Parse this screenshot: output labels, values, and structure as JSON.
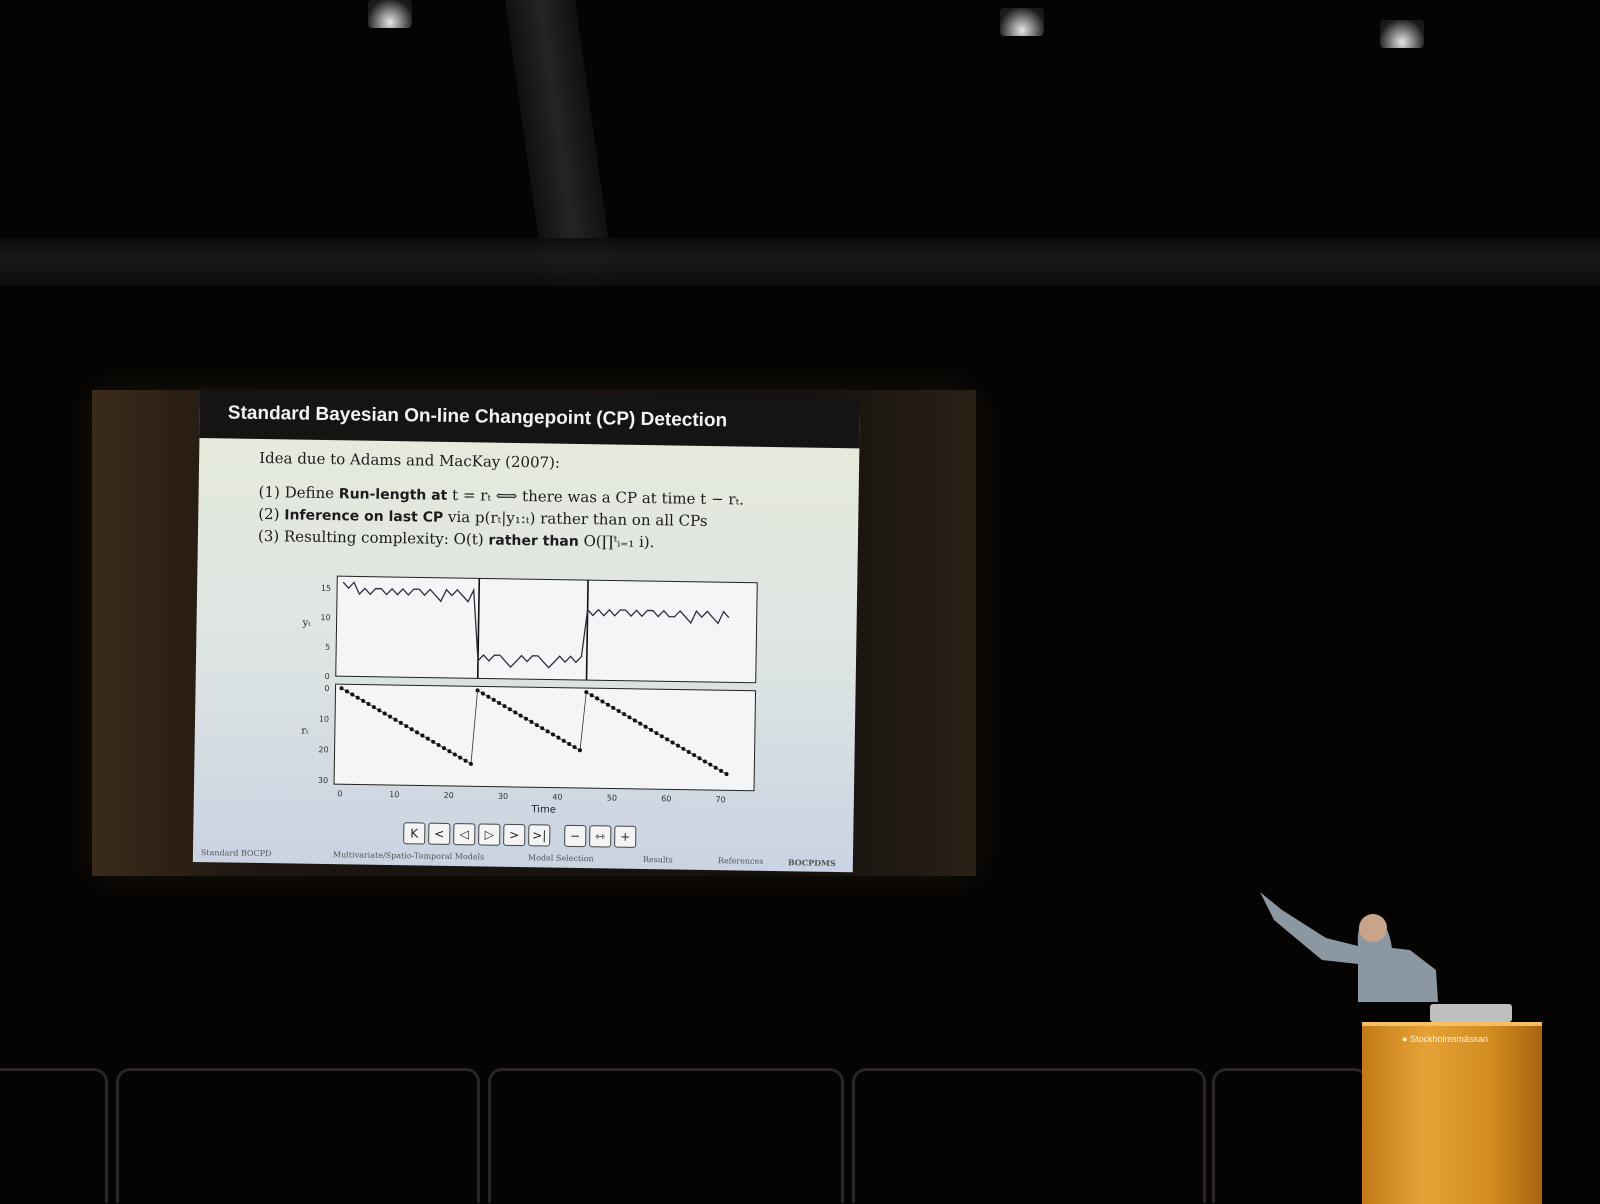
{
  "slide": {
    "title": "Standard Bayesian On-line Changepoint (CP) Detection",
    "intro": "Idea due to Adams and MacKay (2007):",
    "items": [
      {
        "num": "(1)",
        "pre": "Define ",
        "bold": "Run-length at",
        "post": " t = rₜ ⟺ there was a CP at time t − rₜ."
      },
      {
        "num": "(2)",
        "pre": "",
        "bold": "Inference on last CP",
        "post": " via p(rₜ|y₁:ₜ) rather than on all CPs"
      },
      {
        "num": "(3)",
        "pre": "Resulting complexity: O(t) ",
        "bold": "rather than",
        "post": " O(∏ᵗᵢ₌₁ i)."
      }
    ],
    "footer": [
      "Standard BOCPD",
      "Multivariate/Spatio-Temporal Models",
      "Model Selection",
      "Results",
      "References",
      "BOCPDMS"
    ],
    "nav_buttons": [
      "K",
      "<",
      "◁",
      "▷",
      ">",
      ">|",
      "−",
      "⇿",
      "+"
    ]
  },
  "podium": {
    "brand": "Stockholmsmässan"
  },
  "chart_data": {
    "type": "line",
    "xlabel": "Time",
    "ylabel_top": "yₜ",
    "ylabel_bottom": "rₜ",
    "x_ticks": [
      "0",
      "10",
      "20",
      "30",
      "40",
      "50",
      "60",
      "70"
    ],
    "top_y_ticks": [
      "0",
      "5",
      "10",
      "15"
    ],
    "bottom_y_ticks": [
      "0",
      "10",
      "20",
      "30"
    ],
    "changepoints": [
      25,
      45
    ],
    "series": [
      {
        "values": [
          16,
          15,
          16,
          14,
          15,
          14,
          15,
          15,
          14,
          15,
          14,
          15,
          14,
          15,
          15,
          14,
          15,
          14,
          13,
          15,
          14,
          15,
          14,
          13,
          15,
          3,
          4,
          3,
          4,
          4,
          3,
          2,
          3,
          4,
          3,
          4,
          4,
          3,
          2,
          3,
          4,
          3,
          4,
          3,
          4,
          12,
          11,
          12,
          11,
          12,
          11,
          12,
          12,
          11,
          12,
          11,
          12,
          12,
          11,
          12,
          11,
          11,
          12,
          11,
          10,
          12,
          11,
          12,
          11,
          10,
          12,
          11
        ]
      },
      {
        "values": [
          0,
          1,
          2,
          3,
          4,
          5,
          6,
          7,
          8,
          9,
          10,
          11,
          12,
          13,
          14,
          15,
          16,
          17,
          18,
          19,
          20,
          21,
          22,
          23,
          24,
          0,
          1,
          2,
          3,
          4,
          5,
          6,
          7,
          8,
          9,
          10,
          11,
          12,
          13,
          14,
          15,
          16,
          17,
          18,
          19,
          0,
          1,
          2,
          3,
          4,
          5,
          6,
          7,
          8,
          9,
          10,
          11,
          12,
          13,
          14,
          15,
          16,
          17,
          18,
          19,
          20,
          21,
          22,
          23,
          24,
          25,
          26
        ]
      }
    ]
  }
}
